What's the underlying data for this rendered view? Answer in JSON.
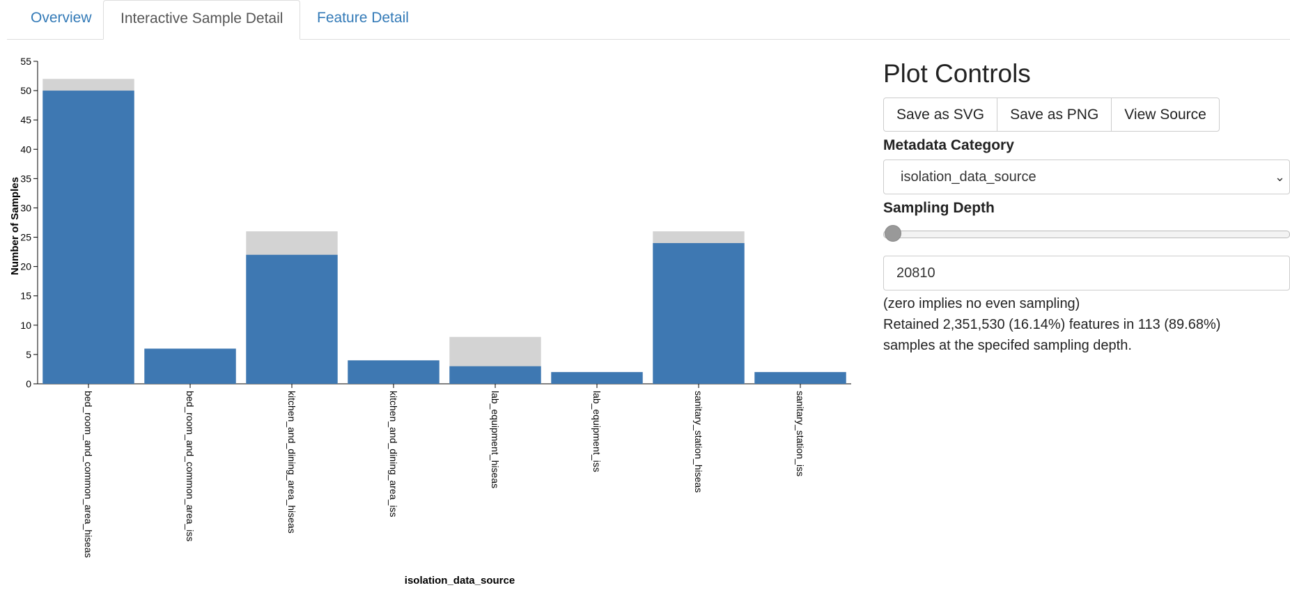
{
  "tabs": [
    {
      "label": "Overview",
      "active": false
    },
    {
      "label": "Interactive Sample Detail",
      "active": true
    },
    {
      "label": "Feature Detail",
      "active": false
    }
  ],
  "controls": {
    "title": "Plot Controls",
    "save_svg": "Save as SVG",
    "save_png": "Save as PNG",
    "view_source": "View Source",
    "metadata_label": "Metadata Category",
    "metadata_value": "isolation_data_source",
    "depth_label": "Sampling Depth",
    "depth_value": "20810",
    "depth_fraction": 0.0,
    "help_text": "(zero implies no even sampling)",
    "retained_line1": "Retained 2,351,530 (16.14%) features in 113 (89.68%)",
    "retained_line2": "samples at the specifed sampling depth."
  },
  "chart_data": {
    "type": "bar",
    "xlabel": "isolation_data_source",
    "ylabel": "Number of Samples",
    "ylim": [
      0,
      55
    ],
    "yticks": [
      0,
      5,
      10,
      15,
      20,
      25,
      30,
      35,
      40,
      45,
      50,
      55
    ],
    "categories": [
      "bed_room_and_common_area_hiseas",
      "bed_room_and_common_area_iss",
      "kitchen_and_dining_area_hiseas",
      "kitchen_and_dining_area_iss",
      "lab_equipment_hiseas",
      "lab_equipment_iss",
      "sanitary_station_hiseas",
      "sanitary_station_iss"
    ],
    "series": [
      {
        "values": [
          50,
          6,
          22,
          4,
          3,
          2,
          24,
          2
        ],
        "color": "#3e78b2"
      },
      {
        "values": [
          52,
          6,
          26,
          4,
          8,
          2,
          26,
          2
        ],
        "color": "#d3d3d3"
      }
    ]
  }
}
